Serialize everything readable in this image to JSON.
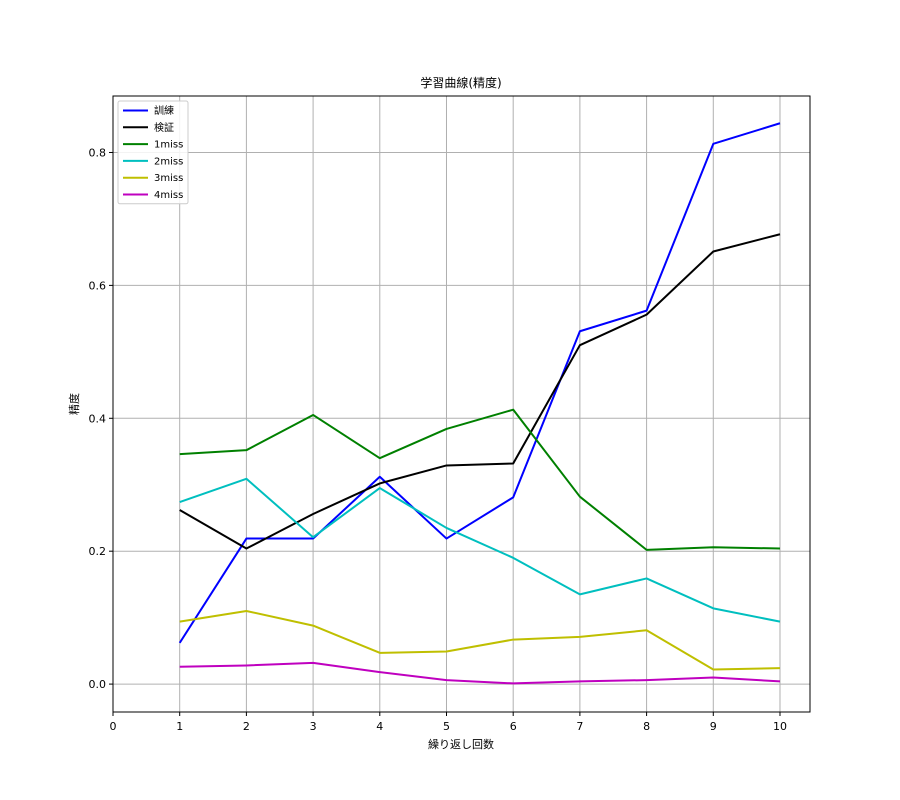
{
  "chart_data": {
    "type": "line",
    "title": "学習曲線(精度)",
    "xlabel": "繰り返し回数",
    "ylabel": "精度",
    "xlim": [
      0,
      10.45
    ],
    "ylim": [
      -0.042,
      0.885
    ],
    "xticks": [
      0,
      1,
      2,
      3,
      4,
      5,
      6,
      7,
      8,
      9,
      10
    ],
    "yticks": [
      0.0,
      0.2,
      0.4,
      0.6,
      0.8
    ],
    "ytick_labels": [
      "0.0",
      "0.2",
      "0.4",
      "0.6",
      "0.8"
    ],
    "grid": true,
    "legend_position": "top-left",
    "x": [
      1,
      2,
      3,
      4,
      5,
      6,
      7,
      8,
      9,
      10
    ],
    "series": [
      {
        "name": "訓練",
        "color": "#0000ff",
        "values": [
          0.062,
          0.219,
          0.219,
          0.312,
          0.219,
          0.281,
          0.531,
          0.562,
          0.813,
          0.844
        ]
      },
      {
        "name": "検証",
        "color": "#000000",
        "values": [
          0.262,
          0.204,
          0.256,
          0.302,
          0.329,
          0.332,
          0.51,
          0.556,
          0.651,
          0.677
        ]
      },
      {
        "name": "1miss",
        "color": "#008000",
        "values": [
          0.346,
          0.352,
          0.405,
          0.34,
          0.384,
          0.413,
          0.282,
          0.202,
          0.206,
          0.204
        ]
      },
      {
        "name": "2miss",
        "color": "#00bfbf",
        "values": [
          0.274,
          0.309,
          0.221,
          0.295,
          0.235,
          0.19,
          0.135,
          0.159,
          0.114,
          0.094
        ]
      },
      {
        "name": "3miss",
        "color": "#bfbf00",
        "values": [
          0.094,
          0.11,
          0.088,
          0.047,
          0.049,
          0.067,
          0.071,
          0.081,
          0.022,
          0.024
        ]
      },
      {
        "name": "4miss",
        "color": "#bf00bf",
        "values": [
          0.026,
          0.028,
          0.032,
          0.018,
          0.006,
          0.001,
          0.004,
          0.006,
          0.01,
          0.004
        ]
      }
    ]
  }
}
